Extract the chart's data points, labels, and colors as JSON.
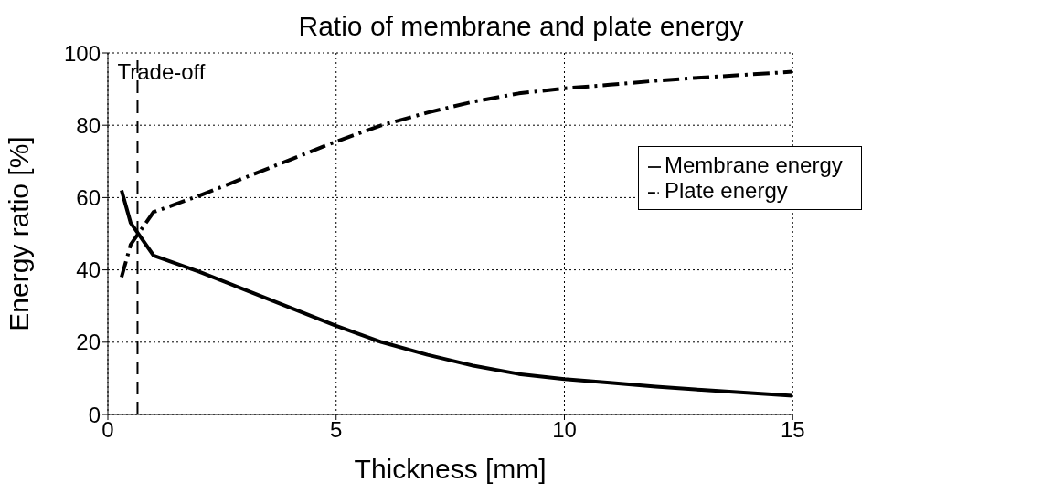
{
  "chart_data": {
    "type": "line",
    "title": "Ratio of membrane and plate energy",
    "xlabel": "Thickness [mm]",
    "ylabel": "Energy ratio [%]",
    "series": [
      {
        "name": "Membrane energy",
        "color": "#000000",
        "line_style": "solid",
        "x": [
          0.3,
          0.5,
          1,
          2,
          3,
          4,
          5,
          6,
          7,
          8,
          9,
          10,
          11,
          12,
          13,
          14,
          15
        ],
        "values": [
          62,
          53,
          44,
          39.5,
          34.5,
          29.5,
          24.5,
          20,
          16.5,
          13.5,
          11.2,
          9.8,
          8.8,
          7.7,
          6.8,
          6,
          5.2
        ]
      },
      {
        "name": "Plate energy",
        "color": "#000000",
        "line_style": "dashed",
        "x": [
          0.3,
          0.5,
          1,
          2,
          3,
          4,
          5,
          6,
          7,
          8,
          9,
          10,
          11,
          12,
          13,
          14,
          15
        ],
        "values": [
          38,
          47,
          56,
          60.5,
          65.5,
          70.5,
          75.5,
          80,
          83.5,
          86.5,
          88.8,
          90.2,
          91.2,
          92.3,
          93.2,
          94,
          94.8
        ]
      }
    ],
    "ref_lines": [
      {
        "axis": "x",
        "value": 0.65,
        "label": "Trade-off",
        "line_style": "dashed"
      }
    ],
    "xlim": [
      0,
      15
    ],
    "xticks": [
      0,
      5,
      10,
      15
    ],
    "ylim": [
      0,
      100
    ],
    "yticks": [
      0,
      20,
      40,
      60,
      80,
      100
    ],
    "grid": true,
    "legend": "right",
    "marker": "none"
  }
}
